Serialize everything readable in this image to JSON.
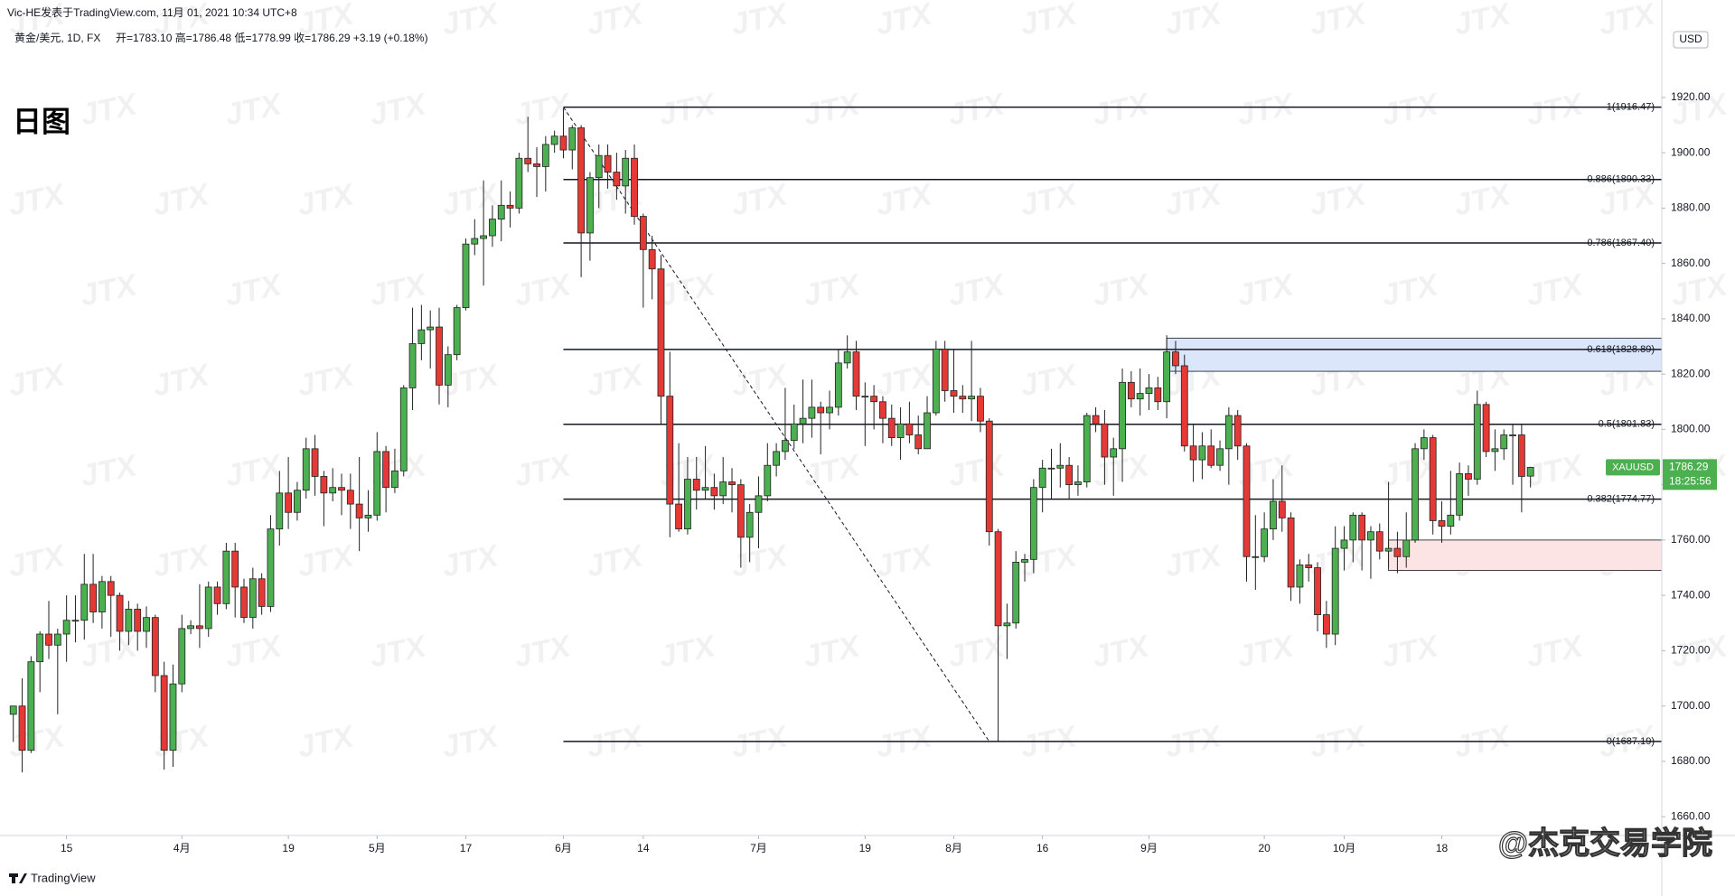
{
  "header": {
    "author": "Vic-HE发表于TradingView.com,  11月 01, 2021 10:34 UTC+8",
    "symbol": "黄金/美元, 1D, FX",
    "legend": "开=1783.10  高=1786.48  低=1778.99  收=1786.29  +3.19 (+0.18%)"
  },
  "footer": {
    "brand": "TradingView",
    "credit": "@杰克交易学院"
  },
  "watermark": "JTX",
  "chart_data": {
    "type": "candlestick",
    "title": "日图",
    "currency": "USD",
    "up_color": "#4caf50",
    "down_color": "#e53935",
    "price_tag": {
      "symbol": "XAUUSD",
      "price": "1786.29",
      "countdown": "18:25:56",
      "color": "#4caf50"
    },
    "xlim": [
      -1.5,
      185.8
    ],
    "ylim": [
      1653.2,
      1946.4
    ],
    "grid": false,
    "xticks": [
      {
        "value": 6,
        "label": "15"
      },
      {
        "value": 19,
        "label": "4月"
      },
      {
        "value": 31,
        "label": "19"
      },
      {
        "value": 41,
        "label": "5月"
      },
      {
        "value": 51,
        "label": "17"
      },
      {
        "value": 62,
        "label": "6月"
      },
      {
        "value": 71,
        "label": "14"
      },
      {
        "value": 84,
        "label": "7月"
      },
      {
        "value": 96,
        "label": "19"
      },
      {
        "value": 106,
        "label": "8月"
      },
      {
        "value": 116,
        "label": "16"
      },
      {
        "value": 128,
        "label": "9月"
      },
      {
        "value": 141,
        "label": "20"
      },
      {
        "value": 150,
        "label": "10月"
      },
      {
        "value": 161,
        "label": "18"
      }
    ],
    "yticks": [
      {
        "value": 1660,
        "label": "1660.00"
      },
      {
        "value": 1680,
        "label": "1680.00"
      },
      {
        "value": 1700,
        "label": "1700.00"
      },
      {
        "value": 1720,
        "label": "1720.00"
      },
      {
        "value": 1740,
        "label": "1740.00"
      },
      {
        "value": 1760,
        "label": "1760.00"
      },
      {
        "value": 1780,
        "label": "1780.00"
      },
      {
        "value": 1800,
        "label": "1800.00"
      },
      {
        "value": 1820,
        "label": "1820.00"
      },
      {
        "value": 1840,
        "label": "1840.00"
      },
      {
        "value": 1860,
        "label": "1860.00"
      },
      {
        "value": 1880,
        "label": "1880.00"
      },
      {
        "value": 1900,
        "label": "1900.00"
      },
      {
        "value": 1920,
        "label": "1920.00"
      }
    ],
    "fib_start": 62,
    "fib_levels": [
      {
        "value": 1916.47,
        "label": "1(1916.47)"
      },
      {
        "value": 1890.33,
        "label": "0.886(1890.33)"
      },
      {
        "value": 1867.4,
        "label": "0.786(1867.40)"
      },
      {
        "value": 1828.89,
        "label": "0.618(1828.89)"
      },
      {
        "value": 1801.83,
        "label": "0.5(1801.83)"
      },
      {
        "value": 1774.77,
        "label": "0.382(1774.77)"
      },
      {
        "value": 1687.19,
        "label": "0(1687.19)"
      }
    ],
    "trend_line": {
      "x": [
        62,
        110
      ],
      "y": [
        1916.47,
        1687.19
      ]
    },
    "zones": [
      {
        "start": 130,
        "top": 1833,
        "bottom": 1821,
        "color": "#dbe6fb"
      },
      {
        "start": 155,
        "top": 1760,
        "bottom": 1749,
        "color": "#fce4e4"
      }
    ],
    "ohlc": [
      [
        1697,
        1700,
        1687,
        1700
      ],
      [
        1700,
        1710,
        1676,
        1684
      ],
      [
        1684,
        1718,
        1683,
        1716
      ],
      [
        1716,
        1727,
        1705,
        1726
      ],
      [
        1726,
        1738,
        1717,
        1722
      ],
      [
        1722,
        1728,
        1697,
        1726
      ],
      [
        1726,
        1740,
        1716,
        1731
      ],
      [
        1731,
        1740,
        1723,
        1731
      ],
      [
        1731,
        1755,
        1724,
        1744
      ],
      [
        1744,
        1755,
        1730,
        1734
      ],
      [
        1734,
        1747,
        1728,
        1745
      ],
      [
        1745,
        1747,
        1725,
        1740
      ],
      [
        1740,
        1741,
        1720,
        1727
      ],
      [
        1727,
        1738,
        1722,
        1735
      ],
      [
        1735,
        1737,
        1720,
        1727
      ],
      [
        1727,
        1736,
        1721,
        1732
      ],
      [
        1732,
        1733,
        1705,
        1711
      ],
      [
        1711,
        1716,
        1677,
        1684
      ],
      [
        1684,
        1715,
        1678,
        1708
      ],
      [
        1708,
        1733,
        1705,
        1728
      ],
      [
        1728,
        1731,
        1726,
        1729
      ],
      [
        1729,
        1744,
        1721,
        1728
      ],
      [
        1728,
        1745,
        1725,
        1743
      ],
      [
        1743,
        1745,
        1733,
        1737
      ],
      [
        1737,
        1759,
        1735,
        1756
      ],
      [
        1756,
        1759,
        1732,
        1743
      ],
      [
        1743,
        1746,
        1730,
        1732
      ],
      [
        1732,
        1750,
        1728,
        1746
      ],
      [
        1746,
        1748,
        1733,
        1736
      ],
      [
        1736,
        1769,
        1734,
        1764
      ],
      [
        1764,
        1785,
        1758,
        1777
      ],
      [
        1777,
        1790,
        1764,
        1770
      ],
      [
        1770,
        1781,
        1767,
        1778
      ],
      [
        1778,
        1797,
        1775,
        1793
      ],
      [
        1793,
        1798,
        1776,
        1783
      ],
      [
        1783,
        1785,
        1765,
        1777
      ],
      [
        1777,
        1786,
        1774,
        1779
      ],
      [
        1779,
        1784,
        1769,
        1778
      ],
      [
        1778,
        1784,
        1764,
        1773
      ],
      [
        1773,
        1790,
        1756,
        1768
      ],
      [
        1768,
        1778,
        1763,
        1769
      ],
      [
        1769,
        1799,
        1767,
        1792
      ],
      [
        1792,
        1794,
        1770,
        1779
      ],
      [
        1779,
        1793,
        1777,
        1785
      ],
      [
        1785,
        1816,
        1783,
        1815
      ],
      [
        1815,
        1844,
        1807,
        1831
      ],
      [
        1831,
        1845,
        1825,
        1836
      ],
      [
        1836,
        1843,
        1822,
        1837
      ],
      [
        1837,
        1844,
        1809,
        1816
      ],
      [
        1816,
        1830,
        1808,
        1827
      ],
      [
        1827,
        1845,
        1825,
        1844
      ],
      [
        1844,
        1869,
        1843,
        1867
      ],
      [
        1867,
        1876,
        1863,
        1869
      ],
      [
        1869,
        1890,
        1852,
        1870
      ],
      [
        1870,
        1881,
        1866,
        1876
      ],
      [
        1876,
        1890,
        1868,
        1881
      ],
      [
        1881,
        1886,
        1873,
        1880
      ],
      [
        1880,
        1900,
        1878,
        1898
      ],
      [
        1898,
        1913,
        1893,
        1896
      ],
      [
        1896,
        1902,
        1884,
        1895
      ],
      [
        1895,
        1906,
        1886,
        1903
      ],
      [
        1903,
        1908,
        1900,
        1906
      ],
      [
        1906,
        1916,
        1898,
        1901
      ],
      [
        1901,
        1910,
        1894,
        1909
      ],
      [
        1909,
        1910,
        1855,
        1871
      ],
      [
        1871,
        1893,
        1861,
        1891
      ],
      [
        1891,
        1903,
        1880,
        1899
      ],
      [
        1899,
        1903,
        1887,
        1893
      ],
      [
        1893,
        1900,
        1883,
        1888
      ],
      [
        1888,
        1901,
        1878,
        1898
      ],
      [
        1898,
        1903,
        1874,
        1877
      ],
      [
        1877,
        1878,
        1844,
        1865
      ],
      [
        1865,
        1870,
        1847,
        1858
      ],
      [
        1858,
        1863,
        1802,
        1812
      ],
      [
        1812,
        1828,
        1761,
        1773
      ],
      [
        1773,
        1795,
        1763,
        1764
      ],
      [
        1764,
        1790,
        1762,
        1782
      ],
      [
        1782,
        1790,
        1771,
        1778
      ],
      [
        1778,
        1794,
        1775,
        1779
      ],
      [
        1779,
        1784,
        1771,
        1776
      ],
      [
        1776,
        1790,
        1773,
        1781
      ],
      [
        1781,
        1786,
        1770,
        1780
      ],
      [
        1780,
        1782,
        1750,
        1761
      ],
      [
        1761,
        1773,
        1752,
        1770
      ],
      [
        1770,
        1783,
        1757,
        1776
      ],
      [
        1776,
        1795,
        1774,
        1787
      ],
      [
        1787,
        1795,
        1783,
        1792
      ],
      [
        1792,
        1815,
        1789,
        1796
      ],
      [
        1796,
        1809,
        1793,
        1802
      ],
      [
        1802,
        1818,
        1795,
        1804
      ],
      [
        1804,
        1818,
        1797,
        1808
      ],
      [
        1808,
        1810,
        1791,
        1806
      ],
      [
        1806,
        1814,
        1800,
        1808
      ],
      [
        1808,
        1829,
        1805,
        1824
      ],
      [
        1824,
        1834,
        1822,
        1828
      ],
      [
        1828,
        1832,
        1807,
        1812
      ],
      [
        1812,
        1817,
        1794,
        1812
      ],
      [
        1812,
        1816,
        1800,
        1810
      ],
      [
        1810,
        1812,
        1795,
        1804
      ],
      [
        1804,
        1809,
        1794,
        1797
      ],
      [
        1797,
        1808,
        1789,
        1802
      ],
      [
        1802,
        1810,
        1795,
        1798
      ],
      [
        1798,
        1805,
        1791,
        1793
      ],
      [
        1793,
        1812,
        1794,
        1806
      ],
      [
        1806,
        1832,
        1805,
        1829
      ],
      [
        1829,
        1832,
        1810,
        1814
      ],
      [
        1814,
        1829,
        1806,
        1812
      ],
      [
        1812,
        1816,
        1806,
        1811
      ],
      [
        1811,
        1832,
        1803,
        1812
      ],
      [
        1812,
        1815,
        1799,
        1803
      ],
      [
        1803,
        1804,
        1758,
        1763
      ],
      [
        1763,
        1764,
        1687,
        1729
      ],
      [
        1729,
        1737,
        1717,
        1730
      ],
      [
        1730,
        1756,
        1728,
        1752
      ],
      [
        1752,
        1755,
        1745,
        1753
      ],
      [
        1753,
        1782,
        1748,
        1779
      ],
      [
        1779,
        1789,
        1770,
        1786
      ],
      [
        1786,
        1793,
        1775,
        1786
      ],
      [
        1786,
        1795,
        1779,
        1787
      ],
      [
        1787,
        1790,
        1775,
        1780
      ],
      [
        1780,
        1787,
        1776,
        1781
      ],
      [
        1781,
        1806,
        1779,
        1805
      ],
      [
        1805,
        1808,
        1799,
        1802
      ],
      [
        1802,
        1807,
        1780,
        1790
      ],
      [
        1790,
        1797,
        1776,
        1793
      ],
      [
        1793,
        1822,
        1781,
        1817
      ],
      [
        1817,
        1821,
        1808,
        1811
      ],
      [
        1811,
        1822,
        1805,
        1813
      ],
      [
        1813,
        1820,
        1807,
        1815
      ],
      [
        1815,
        1819,
        1807,
        1810
      ],
      [
        1810,
        1834,
        1804,
        1828
      ],
      [
        1828,
        1832,
        1820,
        1823
      ],
      [
        1823,
        1827,
        1792,
        1794
      ],
      [
        1794,
        1802,
        1781,
        1789
      ],
      [
        1789,
        1799,
        1782,
        1794
      ],
      [
        1794,
        1800,
        1786,
        1787
      ],
      [
        1787,
        1796,
        1785,
        1793
      ],
      [
        1793,
        1808,
        1780,
        1805
      ],
      [
        1805,
        1807,
        1789,
        1794
      ],
      [
        1794,
        1795,
        1745,
        1754
      ],
      [
        1754,
        1769,
        1742,
        1754
      ],
      [
        1754,
        1770,
        1752,
        1764
      ],
      [
        1764,
        1782,
        1760,
        1774
      ],
      [
        1774,
        1787,
        1763,
        1768
      ],
      [
        1768,
        1770,
        1738,
        1743
      ],
      [
        1743,
        1753,
        1737,
        1751
      ],
      [
        1751,
        1755,
        1745,
        1750
      ],
      [
        1750,
        1752,
        1727,
        1733
      ],
      [
        1733,
        1738,
        1721,
        1726
      ],
      [
        1726,
        1765,
        1722,
        1757
      ],
      [
        1757,
        1765,
        1749,
        1760
      ],
      [
        1760,
        1770,
        1752,
        1769
      ],
      [
        1769,
        1770,
        1749,
        1760
      ],
      [
        1760,
        1765,
        1746,
        1763
      ],
      [
        1763,
        1766,
        1753,
        1756
      ],
      [
        1756,
        1781,
        1750,
        1757
      ],
      [
        1757,
        1763,
        1748,
        1754
      ],
      [
        1754,
        1770,
        1750,
        1760
      ],
      [
        1760,
        1795,
        1759,
        1793
      ],
      [
        1793,
        1800,
        1789,
        1797
      ],
      [
        1797,
        1798,
        1762,
        1767
      ],
      [
        1767,
        1774,
        1759,
        1765
      ],
      [
        1765,
        1785,
        1762,
        1769
      ],
      [
        1769,
        1788,
        1767,
        1784
      ],
      [
        1784,
        1787,
        1776,
        1782
      ],
      [
        1782,
        1814,
        1780,
        1809
      ],
      [
        1809,
        1810,
        1790,
        1792
      ],
      [
        1792,
        1800,
        1785,
        1793
      ],
      [
        1793,
        1800,
        1789,
        1798
      ],
      [
        1798,
        1802,
        1780,
        1798
      ],
      [
        1798,
        1802,
        1770,
        1783
      ],
      [
        1783.1,
        1786.48,
        1778.99,
        1786.29
      ]
    ]
  }
}
